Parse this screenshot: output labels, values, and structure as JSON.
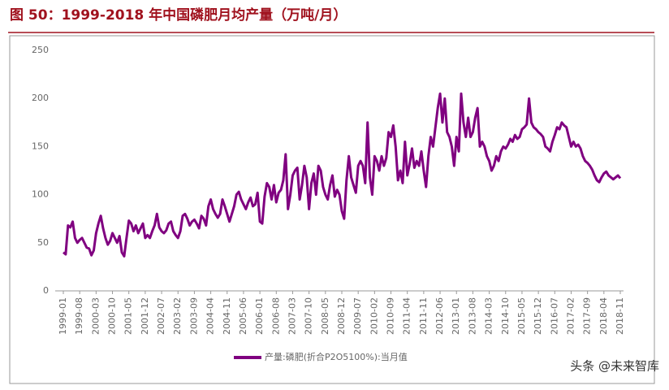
{
  "chart_data": {
    "type": "line",
    "title": "图 50：1999-2018 年中国磷肥月均产量（万吨/月）",
    "watermark": "头条 @未来智库",
    "categories": [
      "1999-01",
      null,
      null,
      null,
      null,
      null,
      null,
      "1999-08",
      null,
      null,
      null,
      null,
      null,
      null,
      "2000-03",
      null,
      null,
      null,
      null,
      null,
      null,
      "2000-10",
      null,
      null,
      null,
      null,
      null,
      null,
      "2001-05",
      null,
      null,
      null,
      null,
      null,
      null,
      "2001-12",
      null,
      null,
      null,
      null,
      null,
      null,
      "2002-07",
      null,
      null,
      null,
      null,
      null,
      null,
      "2003-02",
      null,
      null,
      null,
      null,
      null,
      null,
      "2003-09",
      null,
      null,
      null,
      null,
      null,
      null,
      "2004-04",
      null,
      null,
      null,
      null,
      null,
      null,
      "2004-11",
      null,
      null,
      null,
      null,
      null,
      null,
      "2005-06",
      null,
      null,
      null,
      null,
      null,
      null,
      "2006-01",
      null,
      null,
      null,
      null,
      null,
      null,
      "2006-08",
      null,
      null,
      null,
      null,
      null,
      null,
      "2007-03",
      null,
      null,
      null,
      null,
      null,
      null,
      "2007-10",
      null,
      null,
      null,
      null,
      null,
      null,
      "2008-05",
      null,
      null,
      null,
      null,
      null,
      null,
      "2008-12",
      null,
      null,
      null,
      null,
      null,
      null,
      "2009-07",
      null,
      null,
      null,
      null,
      null,
      null,
      "2010-02",
      null,
      null,
      null,
      null,
      null,
      null,
      "2010-09",
      null,
      null,
      null,
      null,
      null,
      null,
      "2011-04",
      null,
      null,
      null,
      null,
      null,
      null,
      "2011-11",
      null,
      null,
      null,
      null,
      null,
      null,
      "2012-06",
      null,
      null,
      null,
      null,
      null,
      null,
      "2013-01",
      null,
      null,
      null,
      null,
      null,
      null,
      "2013-08",
      null,
      null,
      null,
      null,
      null,
      null,
      "2014-03",
      null,
      null,
      null,
      null,
      null,
      null,
      "2014-10",
      null,
      null,
      null,
      null,
      null,
      null,
      "2015-05",
      null,
      null,
      null,
      null,
      null,
      null,
      "2015-12",
      null,
      null,
      null,
      null,
      null,
      null,
      "2016-07",
      null,
      null,
      null,
      null,
      null,
      null,
      "2017-02",
      null,
      null,
      null,
      null,
      null,
      null,
      "2017-09",
      null,
      null,
      null,
      null,
      null,
      null,
      "2018-04",
      null,
      null,
      null,
      null,
      null,
      null,
      "2018-11"
    ],
    "series": [
      {
        "name": "产量:磷肥(折合P2O5100%):当月值",
        "color": "#800080",
        "values": [
          40,
          38,
          68,
          66,
          72,
          55,
          50,
          53,
          55,
          50,
          45,
          44,
          37,
          42,
          60,
          70,
          78,
          65,
          55,
          48,
          52,
          60,
          55,
          50,
          57,
          40,
          36,
          55,
          73,
          70,
          62,
          68,
          60,
          65,
          70,
          55,
          58,
          55,
          62,
          68,
          80,
          66,
          62,
          60,
          63,
          70,
          72,
          62,
          58,
          55,
          62,
          78,
          80,
          75,
          68,
          72,
          74,
          70,
          65,
          78,
          75,
          68,
          88,
          95,
          85,
          80,
          76,
          80,
          95,
          88,
          80,
          72,
          80,
          88,
          100,
          103,
          95,
          90,
          85,
          92,
          97,
          88,
          90,
          102,
          72,
          70,
          98,
          112,
          108,
          95,
          110,
          92,
          102,
          105,
          115,
          142,
          85,
          100,
          120,
          125,
          128,
          95,
          110,
          130,
          118,
          85,
          112,
          122,
          100,
          130,
          125,
          108,
          100,
          95,
          110,
          120,
          98,
          105,
          100,
          83,
          75,
          115,
          140,
          118,
          110,
          102,
          130,
          135,
          130,
          112,
          175,
          118,
          100,
          140,
          135,
          125,
          140,
          130,
          138,
          165,
          160,
          172,
          150,
          115,
          125,
          112,
          155,
          120,
          132,
          148,
          128,
          135,
          130,
          145,
          125,
          108,
          140,
          160,
          150,
          170,
          190,
          205,
          175,
          200,
          165,
          160,
          150,
          130,
          160,
          145,
          205,
          175,
          160,
          180,
          160,
          165,
          180,
          190,
          150,
          155,
          150,
          140,
          135,
          125,
          130,
          140,
          135,
          145,
          150,
          148,
          152,
          158,
          155,
          162,
          158,
          160,
          168,
          170,
          173,
          200,
          175,
          170,
          168,
          165,
          163,
          160,
          150,
          148,
          145,
          155,
          162,
          170,
          168,
          175,
          172,
          170,
          160,
          150,
          155,
          150,
          152,
          148,
          140,
          135,
          133,
          130,
          126,
          120,
          115,
          113,
          118,
          122,
          124,
          120,
          118,
          116,
          118,
          120,
          117
        ]
      }
    ],
    "ylim": [
      0,
      250
    ],
    "yticks": [
      0,
      50,
      100,
      150,
      200,
      250
    ],
    "grid": false,
    "legend": "bottom"
  }
}
